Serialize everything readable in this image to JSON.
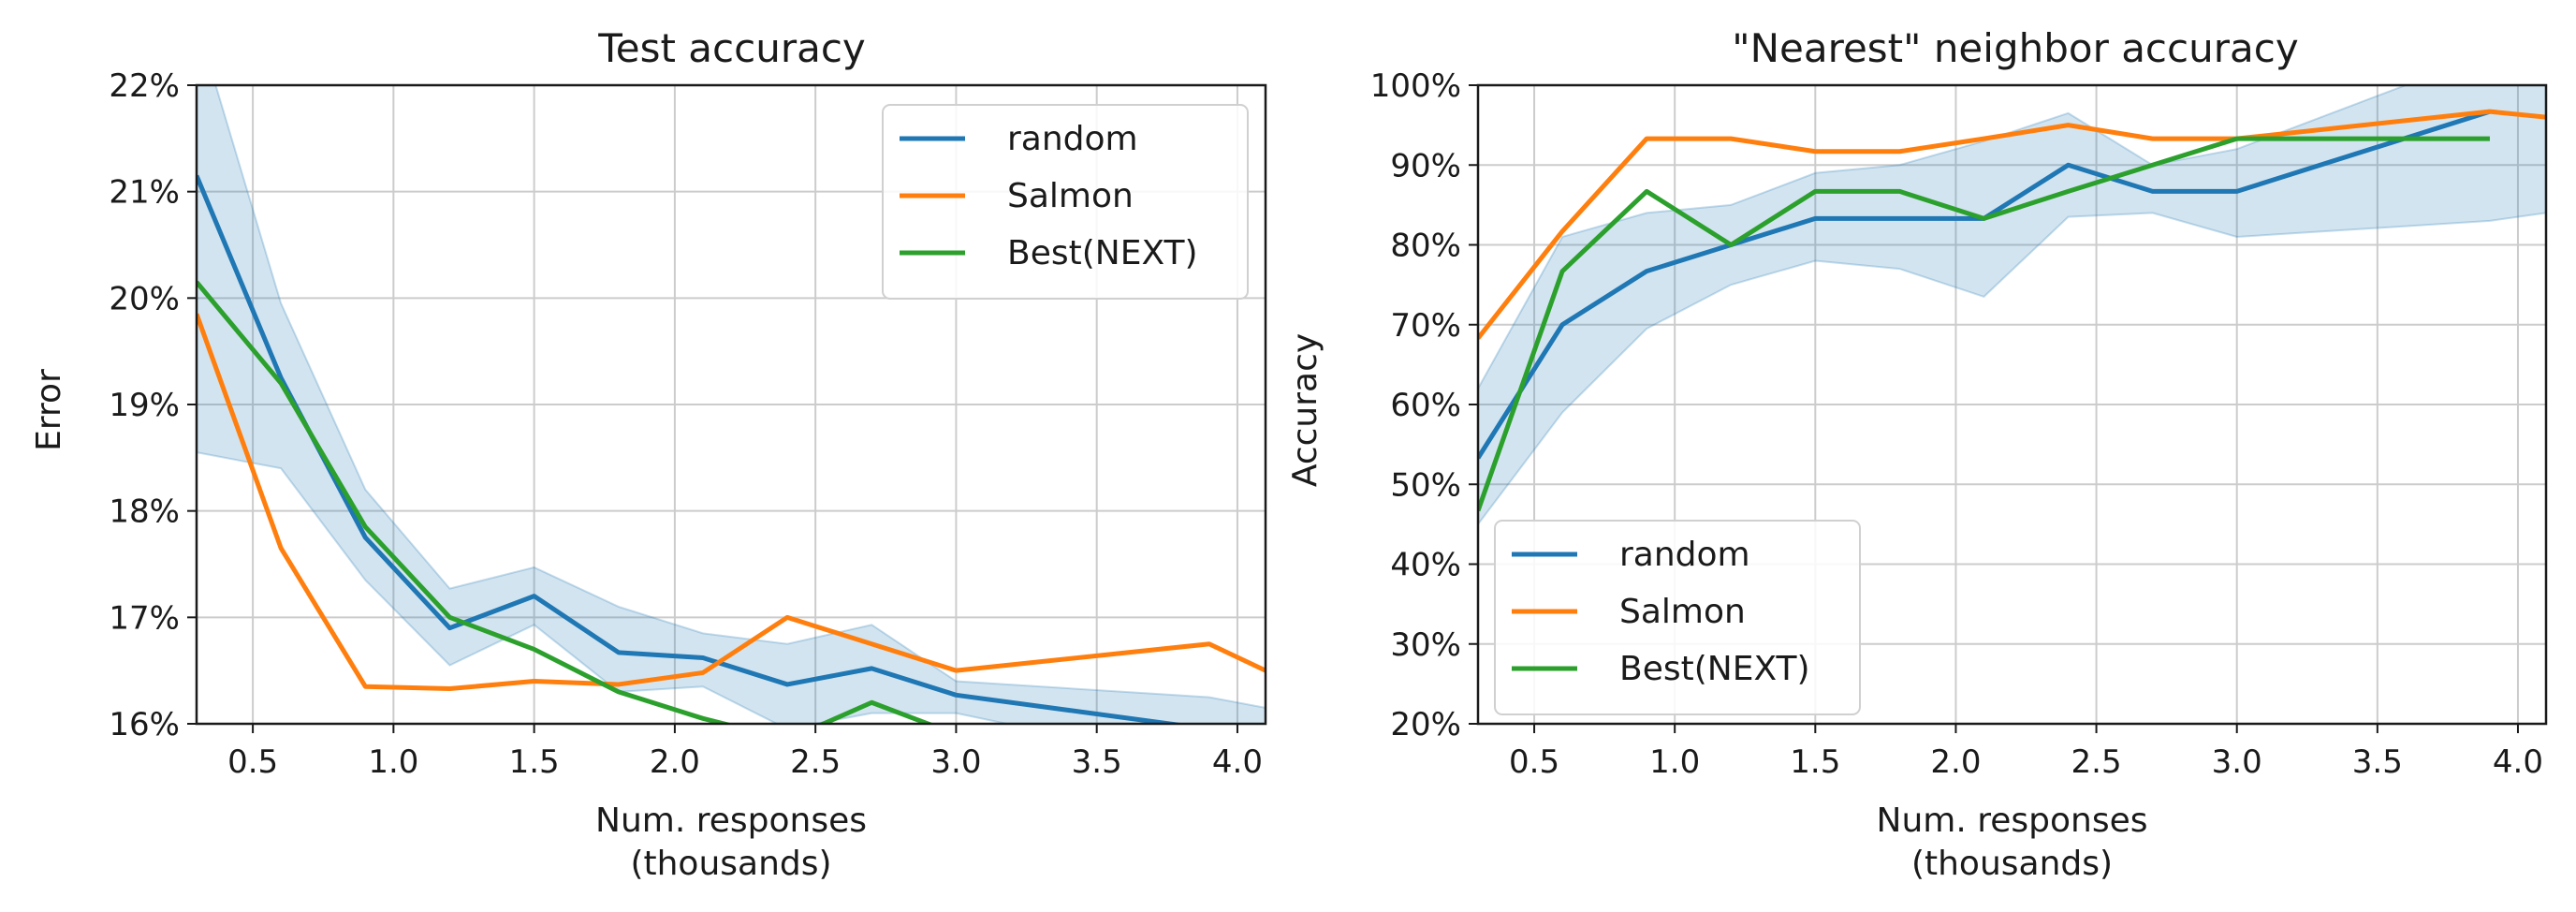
{
  "colors": {
    "random": "#1f77b4",
    "salmon": "#ff7f0e",
    "best": "#2ca02c",
    "band": "#1f77b4",
    "grid": "#cccccc"
  },
  "chart_data": [
    {
      "type": "line",
      "title": "Test accuracy",
      "xlabel": "Num. responses\n(thousands)",
      "ylabel": "Error",
      "xlim": [
        0.3,
        4.1
      ],
      "ylim": [
        16,
        22
      ],
      "xticks": [
        0.5,
        1.0,
        1.5,
        2.0,
        2.5,
        3.0,
        3.5,
        4.0
      ],
      "xtick_labels": [
        "0.5",
        "1.0",
        "1.5",
        "2.0",
        "2.5",
        "3.0",
        "3.5",
        "4.0"
      ],
      "yticks": [
        16,
        17,
        18,
        19,
        20,
        21,
        22
      ],
      "ytick_labels": [
        "16%",
        "17%",
        "18%",
        "19%",
        "20%",
        "21%",
        "22%"
      ],
      "grid": true,
      "legend_position": "top-right",
      "series": [
        {
          "name": "random",
          "color_key": "random",
          "x": [
            0.3,
            0.6,
            0.9,
            1.2,
            1.5,
            1.8,
            2.1,
            2.4,
            2.7,
            3.0,
            3.9,
            4.1
          ],
          "y": [
            21.15,
            19.25,
            17.75,
            16.9,
            17.2,
            16.67,
            16.62,
            16.37,
            16.52,
            16.27,
            15.95,
            15.88
          ]
        },
        {
          "name": "Salmon",
          "color_key": "salmon",
          "x": [
            0.3,
            0.6,
            0.9,
            1.2,
            1.5,
            1.8,
            2.1,
            2.4,
            2.7,
            3.0,
            3.9,
            4.1
          ],
          "y": [
            19.85,
            17.65,
            16.35,
            16.33,
            16.4,
            16.37,
            16.48,
            17.0,
            16.75,
            16.5,
            16.75,
            16.5
          ]
        },
        {
          "name": "Best(NEXT)",
          "color_key": "best",
          "x": [
            0.3,
            0.6,
            0.9,
            1.2,
            1.5,
            1.8,
            2.1,
            2.4,
            2.7,
            3.0
          ],
          "y": [
            20.15,
            19.2,
            17.85,
            17.0,
            16.7,
            16.3,
            16.05,
            15.85,
            16.2,
            15.9
          ]
        }
      ],
      "band": {
        "x": [
          0.3,
          0.6,
          0.9,
          1.2,
          1.5,
          1.8,
          2.1,
          2.4,
          2.7,
          3.0,
          3.9,
          4.1
        ],
        "upper": [
          22.6,
          19.95,
          18.2,
          17.27,
          17.47,
          17.1,
          16.85,
          16.75,
          16.93,
          16.4,
          16.25,
          16.15
        ],
        "lower": [
          18.55,
          18.4,
          17.35,
          16.55,
          16.93,
          16.3,
          16.35,
          15.95,
          16.1,
          16.1,
          15.6,
          15.6
        ]
      }
    },
    {
      "type": "line",
      "title": "\"Nearest\" neighbor accuracy",
      "xlabel": "Num. responses\n(thousands)",
      "ylabel": "Accuracy",
      "xlim": [
        0.3,
        4.1
      ],
      "ylim": [
        20,
        100
      ],
      "xticks": [
        0.5,
        1.0,
        1.5,
        2.0,
        2.5,
        3.0,
        3.5,
        4.0
      ],
      "xtick_labels": [
        "0.5",
        "1.0",
        "1.5",
        "2.0",
        "2.5",
        "3.0",
        "3.5",
        "4.0"
      ],
      "yticks": [
        20,
        30,
        40,
        50,
        60,
        70,
        80,
        90,
        100
      ],
      "ytick_labels": [
        "20%",
        "30%",
        "40%",
        "50%",
        "60%",
        "70%",
        "80%",
        "90%",
        "100%"
      ],
      "grid": true,
      "legend_position": "bottom-left",
      "series": [
        {
          "name": "random",
          "color_key": "random",
          "x": [
            0.3,
            0.6,
            0.9,
            1.2,
            1.5,
            1.8,
            2.1,
            2.4,
            2.7,
            3.0,
            3.9
          ],
          "y": [
            53.3,
            70.0,
            76.7,
            80.0,
            83.3,
            83.3,
            83.3,
            90.0,
            86.7,
            86.7,
            96.7
          ]
        },
        {
          "name": "Salmon",
          "color_key": "salmon",
          "x": [
            0.3,
            0.6,
            0.9,
            1.2,
            1.5,
            1.8,
            2.1,
            2.4,
            2.7,
            3.0,
            3.9,
            4.1
          ],
          "y": [
            68.3,
            81.7,
            93.3,
            93.3,
            91.7,
            91.7,
            93.3,
            95.0,
            93.3,
            93.3,
            96.7,
            96.0
          ]
        },
        {
          "name": "Best(NEXT)",
          "color_key": "best",
          "x": [
            0.3,
            0.6,
            0.9,
            1.2,
            1.5,
            1.8,
            2.1,
            2.4,
            2.7,
            3.0,
            3.9
          ],
          "y": [
            46.7,
            76.7,
            86.7,
            80.0,
            86.7,
            86.7,
            83.3,
            86.7,
            90.0,
            93.3,
            93.3
          ]
        }
      ],
      "band": {
        "x": [
          0.3,
          0.6,
          0.9,
          1.2,
          1.5,
          1.8,
          2.1,
          2.4,
          2.7,
          3.0,
          3.9,
          4.1
        ],
        "upper": [
          62,
          81,
          84,
          85,
          89,
          90,
          93,
          96.5,
          90,
          92,
          104,
          104
        ],
        "lower": [
          45,
          59,
          69.5,
          75,
          78,
          77,
          73.5,
          83.5,
          84,
          81,
          83,
          84
        ]
      }
    }
  ]
}
